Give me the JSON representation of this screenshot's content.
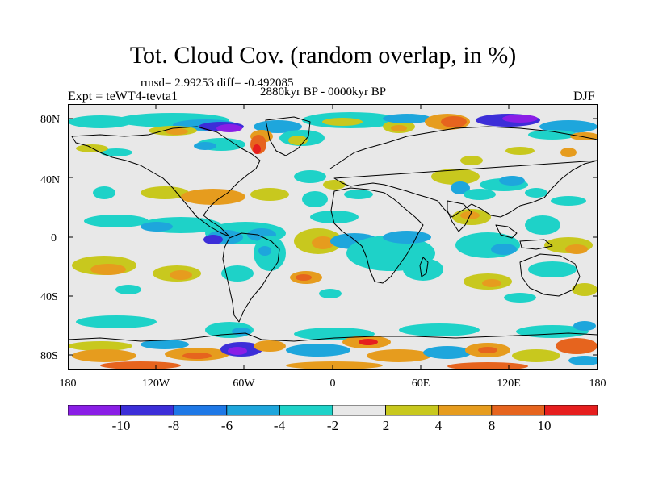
{
  "title": "Tot. Cloud Cov. (random overlap, in %)",
  "stats": "rmsd= 2.99253 diff= -0.492085",
  "experiment": "Expt = teWT4-tevta1",
  "period": "2880kyr BP - 0000kyr BP",
  "season": "DJF",
  "lat_labels": [
    "80N",
    "40N",
    "0",
    "40S",
    "80S"
  ],
  "lon_labels": [
    "180",
    "120W",
    "60W",
    "0",
    "60E",
    "120E",
    "180"
  ],
  "colorbar": {
    "labels": [
      "-10",
      "-8",
      "-6",
      "-4",
      "-2",
      "2",
      "4",
      "8",
      "10"
    ],
    "colors": [
      "#8a1ee6",
      "#3c2ed8",
      "#1e78e6",
      "#1ea6dc",
      "#1ed2c8",
      "#e8e8e8",
      "#c8c81e",
      "#e69c1e",
      "#e6641e",
      "#e61e1e"
    ]
  },
  "map_colors": {
    "ocean_neutral": "#e8e8e8",
    "coast": "#000000"
  }
}
